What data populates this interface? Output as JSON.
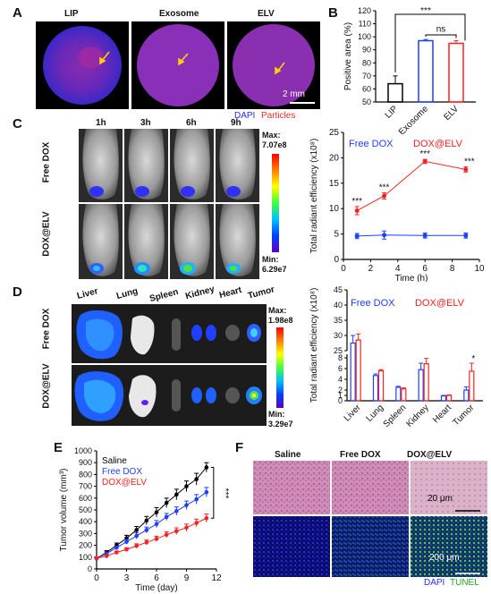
{
  "panelA": {
    "letter": "A",
    "labels": [
      "LIP",
      "Exosome",
      "ELV"
    ],
    "scalebar": "2 mm",
    "legend_dapi": "DAPI",
    "legend_particles": "Particles",
    "colors": {
      "dapi": "#2b2bff",
      "particles": "#ff2b2b"
    }
  },
  "panelB": {
    "letter": "B",
    "sig1": "***",
    "sig2": "ns",
    "chart_data": {
      "type": "bar",
      "categories": [
        "LIP",
        "Exosome",
        "ELV"
      ],
      "values": [
        64,
        97,
        95
      ],
      "errors": [
        6,
        1,
        2
      ],
      "colors": [
        "#000000",
        "#1f3fff",
        "#ff2020"
      ],
      "ylabel": "Positive area (%)",
      "ylim": [
        50,
        120
      ],
      "yticks": [
        "50",
        "60",
        "70",
        "80",
        "90",
        "100",
        "110",
        "120"
      ]
    }
  },
  "panelC": {
    "letter": "C",
    "times": [
      "1h",
      "3h",
      "6h",
      "9h"
    ],
    "rows": [
      "Free DOX",
      "DOX@ELV"
    ],
    "colorbar_max_label": "Max:",
    "colorbar_max_value": "7.07e8",
    "colorbar_min_label": "Min:",
    "colorbar_min_value": "6.29e7",
    "chart_data": {
      "type": "line",
      "x": [
        1,
        3,
        6,
        9
      ],
      "series": [
        {
          "name": "Free DOX",
          "values": [
            4.6,
            4.8,
            4.7,
            4.7
          ],
          "errors": [
            0.5,
            0.8,
            0.5,
            0.5
          ],
          "color": "#1f3fff"
        },
        {
          "name": "DOX@ELV",
          "values": [
            9.6,
            12.5,
            19.3,
            17.7
          ],
          "errors": [
            0.8,
            0.6,
            0.4,
            0.5
          ],
          "color": "#ff2020"
        }
      ],
      "annotations": [
        "***",
        "***",
        "***",
        "***"
      ],
      "xlabel": "Time (h)",
      "ylabel": "Total radiant efficiency (x10⁸)",
      "xlim": [
        0,
        10
      ],
      "ylim": [
        0,
        25
      ],
      "xticks": [
        "0",
        "2",
        "4",
        "6",
        "8",
        "10"
      ],
      "yticks": [
        "0",
        "5",
        "10",
        "15",
        "20",
        "25"
      ]
    }
  },
  "panelD": {
    "letter": "D",
    "organs": [
      "Liver",
      "Lung",
      "Spleen",
      "Kidney",
      "Heart",
      "Tumor"
    ],
    "rows": [
      "Free DOX",
      "DOX@ELV"
    ],
    "colorbar_max_label": "Max:",
    "colorbar_max_value": "1.98e8",
    "colorbar_min_label": "Min:",
    "colorbar_min_value": "3.29e7",
    "chart_data": {
      "type": "bar",
      "categories": [
        "Liver",
        "Lung",
        "Spleen",
        "Kidney",
        "Heart",
        "Tumor"
      ],
      "series": [
        {
          "name": "Free DOX",
          "values": [
            27.5,
            4.7,
            2.5,
            5.8,
            0.9,
            2.0
          ],
          "errors": [
            2.5,
            0.3,
            0.2,
            1.2,
            0.1,
            0.6
          ],
          "color": "#1f3fff"
        },
        {
          "name": "DOX@ELV",
          "values": [
            28.5,
            5.6,
            2.2,
            6.9,
            1.0,
            5.5
          ],
          "errors": [
            2.0,
            0.2,
            0.2,
            1.0,
            0.1,
            1.5
          ],
          "color": "#ff2020"
        }
      ],
      "annotations": [
        "",
        "",
        "",
        "",
        "",
        "*"
      ],
      "ylabel": "Total radiant efficiency (x10⁸)",
      "yticks": [
        "0",
        "1",
        "2",
        "4",
        "6",
        "8",
        "25",
        "30",
        "35",
        "40",
        "45"
      ]
    }
  },
  "panelE": {
    "letter": "E",
    "sig": "***",
    "chart_data": {
      "type": "line",
      "x": [
        0,
        1,
        2,
        3,
        4,
        5,
        6,
        7,
        8,
        9,
        10,
        11
      ],
      "series": [
        {
          "name": "Saline",
          "values": [
            90,
            140,
            200,
            260,
            330,
            410,
            480,
            560,
            630,
            700,
            760,
            860
          ],
          "errors": [
            10,
            15,
            20,
            25,
            30,
            35,
            40,
            40,
            45,
            45,
            50,
            40
          ],
          "color": "#000000"
        },
        {
          "name": "Free DOX",
          "values": [
            90,
            130,
            180,
            230,
            280,
            330,
            380,
            440,
            490,
            540,
            590,
            650
          ],
          "errors": [
            10,
            12,
            15,
            20,
            25,
            25,
            30,
            30,
            35,
            35,
            40,
            40
          ],
          "color": "#1f3fff"
        },
        {
          "name": "DOX@ELV",
          "values": [
            90,
            110,
            140,
            165,
            195,
            225,
            255,
            290,
            320,
            350,
            390,
            430
          ],
          "errors": [
            10,
            10,
            12,
            15,
            18,
            20,
            22,
            25,
            28,
            30,
            32,
            35
          ],
          "color": "#ff2020"
        }
      ],
      "xlabel": "Time (day)",
      "ylabel": "Tumor volume (mm³)",
      "xlim": [
        0,
        12
      ],
      "ylim": [
        0,
        1000
      ],
      "xticks": [
        "0",
        "3",
        "6",
        "9",
        "12"
      ],
      "yticks": [
        "0",
        "100",
        "200",
        "300",
        "400",
        "500",
        "600",
        "700",
        "800",
        "900",
        "1000"
      ]
    }
  },
  "panelF": {
    "letter": "F",
    "labels": [
      "Saline",
      "Free DOX",
      "DOX@ELV"
    ],
    "scalebar_top": "20 μm",
    "scalebar_bottom": "200 μm",
    "legend_dapi": "DAPI",
    "legend_tunel": "TUNEL",
    "colors": {
      "dapi": "#2b2bff",
      "tunel": "#22aa22"
    }
  }
}
